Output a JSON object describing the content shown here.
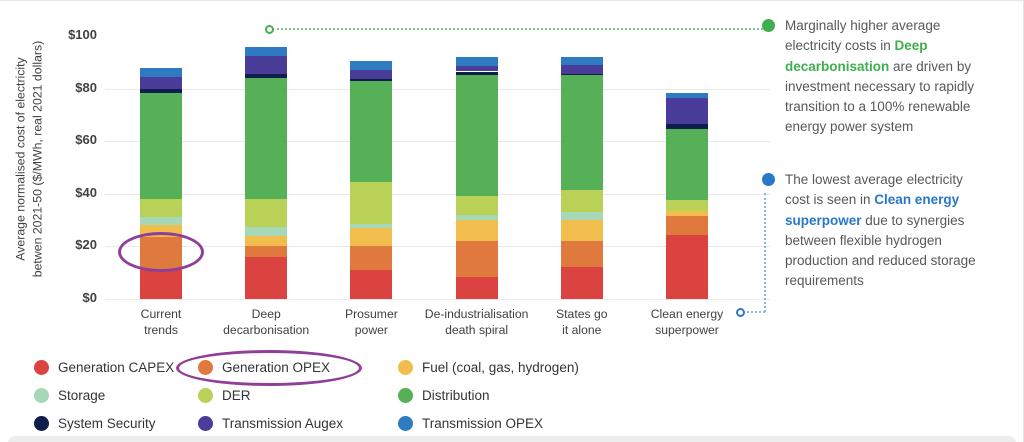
{
  "chart_data": {
    "type": "bar",
    "stacked": true,
    "title": "",
    "ylabel": "Average normalised cost of electricity\nbetwen 2021-50 ($/MWh, real 2021 dollars)",
    "ylim": [
      0,
      100
    ],
    "yticks": [
      0,
      20,
      40,
      60,
      80,
      100
    ],
    "ytick_labels": [
      "$0",
      "$20",
      "$40",
      "$60",
      "$80",
      "$100"
    ],
    "grid": "horizontal",
    "legend_position": "bottom",
    "categories": [
      "Current trends",
      "Deep decarbonisation",
      "Prosumer power",
      "De-industrialisation death spiral",
      "States go it alone",
      "Clean energy superpower"
    ],
    "categories_wrapped": [
      [
        "Current",
        "trends"
      ],
      [
        "Deep",
        "decarbonisation"
      ],
      [
        "Prosumer",
        "power"
      ],
      [
        "De-industrialisation",
        "death spiral"
      ],
      [
        "States go",
        "it alone"
      ],
      [
        "Clean energy",
        "superpower"
      ]
    ],
    "series": [
      {
        "name": "Generation CAPEX",
        "color": "#da4340",
        "values": [
          11,
          16,
          11,
          8.5,
          12,
          24.5
        ]
      },
      {
        "name": "Generation OPEX",
        "color": "#e0793e",
        "values": [
          12.5,
          4,
          9,
          13.5,
          10,
          7
        ]
      },
      {
        "name": "Fuel (coal, gas, hydrogen)",
        "color": "#f1bd4d",
        "values": [
          4.5,
          4,
          7,
          8,
          8,
          2
        ]
      },
      {
        "name": "Storage",
        "color": "#a6d7b6",
        "values": [
          3,
          3.5,
          1.5,
          2,
          3,
          0
        ]
      },
      {
        "name": "DER",
        "color": "#b8d156",
        "values": [
          7,
          10.5,
          16,
          7,
          8.5,
          4
        ]
      },
      {
        "name": "Distribution",
        "color": "#55b057",
        "values": [
          40.5,
          46,
          38.5,
          46,
          43.5,
          27
        ]
      },
      {
        "name": "System Security",
        "color": "#0f1e4a",
        "values": [
          1.5,
          1.5,
          0.5,
          1.5,
          0.5,
          2
        ]
      },
      {
        "name": "Transmission Augex",
        "color": "#4a3d99",
        "values": [
          4.5,
          7,
          3.5,
          2,
          3.5,
          10
        ]
      },
      {
        "name": "Transmission OPEX",
        "color": "#2f7bc2",
        "values": [
          3.5,
          3.5,
          3.5,
          3.5,
          3,
          2
        ]
      }
    ],
    "highlights": {
      "ellipse_color": "#8f3f97",
      "chart_ellipse_target": "Generation OPEX segment of Current trends bar",
      "legend_ellipse_target": "Generation OPEX legend item"
    }
  },
  "annotations": [
    {
      "bullet_color": "#3fae4e",
      "connector_color": "#7ec983",
      "segments": {
        "pre": "Marginally higher average electricity costs in ",
        "highlight": "Deep decarbonisation",
        "post": " are driven by investment necessary to rapidly transition to a 100% renewable energy power system"
      }
    },
    {
      "bullet_color": "#2878c8",
      "connector_color": "#85b7e0",
      "segments": {
        "pre": "The lowest average electricity cost is seen in ",
        "highlight": "Clean energy superpower",
        "post": " due to synergies between flexible hydrogen production and reduced storage requirements"
      }
    }
  ]
}
